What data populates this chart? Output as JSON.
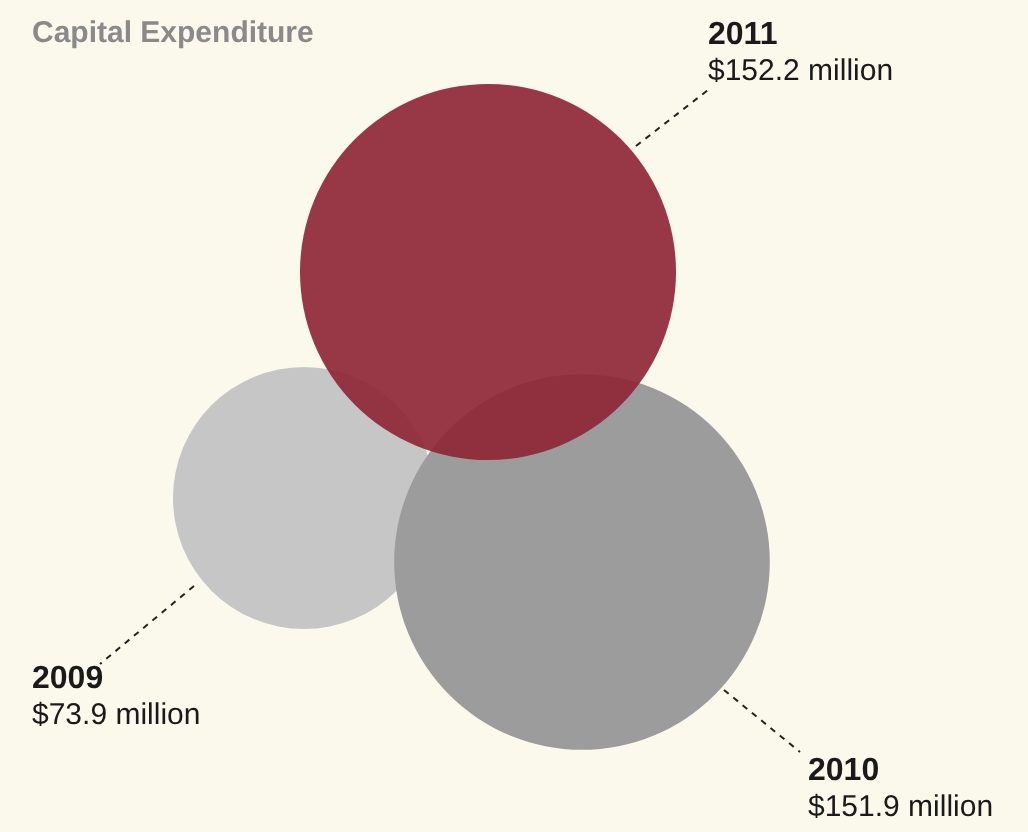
{
  "chart_data": {
    "type": "other",
    "title": "Capital Expenditure",
    "categories": [
      "2009",
      "2010",
      "2011"
    ],
    "values": [
      73.9,
      151.9,
      152.2
    ],
    "value_labels": [
      "$73.9 million",
      "$151.9 million",
      "$152.2 million"
    ],
    "colors": [
      "#c6c6c6",
      "#9c9c9c",
      "#8f2636"
    ]
  }
}
